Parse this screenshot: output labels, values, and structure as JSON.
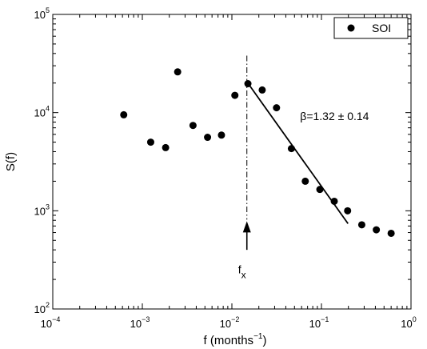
{
  "chart_data": {
    "type": "scatter",
    "xscale": "log",
    "yscale": "log",
    "xlim": [
      0.0001,
      1
    ],
    "ylim": [
      100,
      100000
    ],
    "xlabel": {
      "base": "f (months",
      "sup": "−1",
      "end": ")"
    },
    "ylabel": "S(f)",
    "x_ticks": [
      {
        "value": 0.0001,
        "base": "10",
        "exp": "−4"
      },
      {
        "value": 0.001,
        "base": "10",
        "exp": "−3"
      },
      {
        "value": 0.01,
        "base": "10",
        "exp": "−2"
      },
      {
        "value": 0.1,
        "base": "10",
        "exp": "−1"
      },
      {
        "value": 1,
        "base": "10",
        "exp": "0"
      }
    ],
    "y_ticks": [
      {
        "value": 100,
        "base": "10",
        "exp": "2"
      },
      {
        "value": 1000,
        "base": "10",
        "exp": "3"
      },
      {
        "value": 10000,
        "base": "10",
        "exp": "4"
      },
      {
        "value": 100000,
        "base": "10",
        "exp": "5"
      }
    ],
    "grid": false,
    "legend": {
      "position": "top-right",
      "entries": [
        "SOI"
      ]
    },
    "series": [
      {
        "name": "SOI",
        "marker": "filled-circle",
        "color": "#000000",
        "points": [
          {
            "x": 0.00062,
            "y": 9500
          },
          {
            "x": 0.00124,
            "y": 5000
          },
          {
            "x": 0.00182,
            "y": 4400
          },
          {
            "x": 0.00248,
            "y": 26000
          },
          {
            "x": 0.00368,
            "y": 7400
          },
          {
            "x": 0.00535,
            "y": 5600
          },
          {
            "x": 0.00765,
            "y": 5900
          },
          {
            "x": 0.0108,
            "y": 15000
          },
          {
            "x": 0.0151,
            "y": 19700
          },
          {
            "x": 0.0218,
            "y": 17000
          },
          {
            "x": 0.0315,
            "y": 11200
          },
          {
            "x": 0.0462,
            "y": 4300
          },
          {
            "x": 0.066,
            "y": 2000
          },
          {
            "x": 0.096,
            "y": 1650
          },
          {
            "x": 0.139,
            "y": 1250
          },
          {
            "x": 0.196,
            "y": 1000
          },
          {
            "x": 0.282,
            "y": 720
          },
          {
            "x": 0.41,
            "y": 640
          },
          {
            "x": 0.6,
            "y": 590
          }
        ]
      }
    ],
    "fit_line": {
      "x": [
        0.0158,
        0.198
      ],
      "y": [
        18800,
        740
      ]
    },
    "vertical_marker": {
      "x": 0.0147,
      "style": "dash-dot"
    },
    "annotations": {
      "beta": {
        "text": "β=1.32 ± 0.14",
        "x": 0.14,
        "y": 8400
      },
      "fx": {
        "base": "f",
        "sub": "x",
        "x": 0.0147,
        "y": 230
      },
      "arrow": {
        "x": 0.0147,
        "y_from": 400,
        "y_to": 700
      }
    }
  }
}
